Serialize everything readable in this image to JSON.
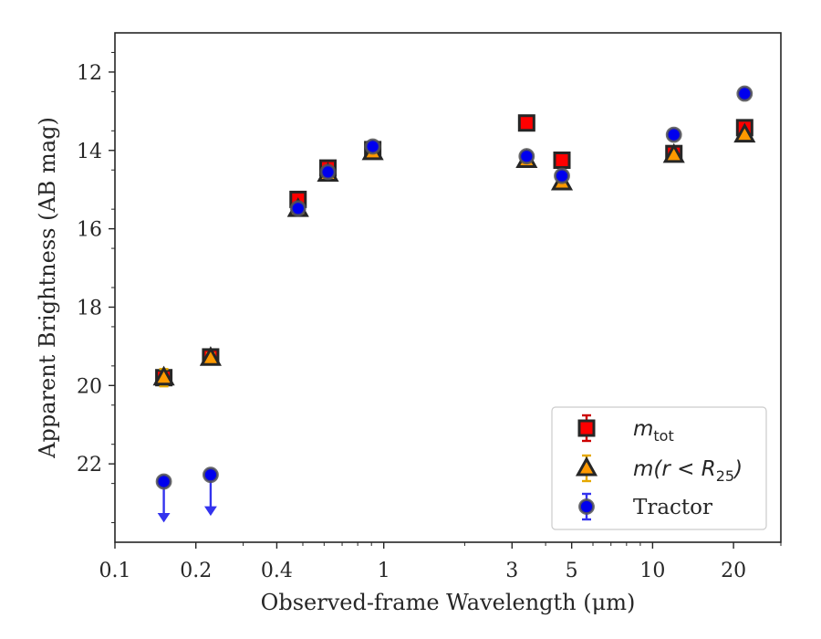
{
  "chart_data": {
    "type": "scatter",
    "title": "",
    "xlabel": "Observed-frame Wavelength (μm)",
    "ylabel": "Apparent Brightness (AB mag)",
    "xscale": "log",
    "xlim": [
      0.1,
      30
    ],
    "ylim": [
      24,
      11
    ],
    "y_inverted": true,
    "x_ticks": [
      0.1,
      0.2,
      0.4,
      1,
      3,
      5,
      10,
      20
    ],
    "x_tick_labels": [
      "0.1",
      "0.2",
      "0.4",
      "1",
      "3",
      "5",
      "10",
      "20"
    ],
    "y_ticks": [
      12,
      14,
      16,
      18,
      20,
      22
    ],
    "y_tick_labels": [
      "12",
      "14",
      "16",
      "18",
      "20",
      "22"
    ],
    "grid": false,
    "legend_position": "bottom-right",
    "series": [
      {
        "name": "m_tot",
        "legend_main": "m",
        "legend_sub": "tot",
        "marker": "square",
        "color": "#ff0000",
        "edge_color": "#262626",
        "errbar_color": "#cc0000",
        "x": [
          0.152,
          0.227,
          0.48,
          0.62,
          0.91,
          3.4,
          4.6,
          12.0,
          22.0
        ],
        "y": [
          19.8,
          19.27,
          15.25,
          14.45,
          13.98,
          13.3,
          14.25,
          14.08,
          13.42
        ],
        "yerr": [
          0.08,
          0.08,
          0.04,
          0.04,
          0.04,
          0.03,
          0.03,
          0.04,
          0.05
        ]
      },
      {
        "name": "m(r < R_25)",
        "legend_main": "m(r < R",
        "legend_sub": "25",
        "legend_tail": ")",
        "marker": "triangle",
        "color": "#ff9900",
        "edge_color": "#262626",
        "errbar_color": "#e6a800",
        "x": [
          0.152,
          0.227,
          0.48,
          0.62,
          0.91,
          3.4,
          4.6,
          12.0,
          22.0
        ],
        "y": [
          19.8,
          19.3,
          15.5,
          14.6,
          14.05,
          14.25,
          14.82,
          14.12,
          13.6
        ],
        "yerr": [
          0.22,
          0.12,
          0.04,
          0.04,
          0.04,
          0.03,
          0.03,
          0.04,
          0.05
        ]
      },
      {
        "name": "Tractor",
        "legend_main": "Tractor",
        "marker": "circle",
        "color": "#0000ee",
        "edge_color": "#555555",
        "errbar_color": "#3333ee",
        "x": [
          0.152,
          0.227,
          0.48,
          0.62,
          0.91,
          3.4,
          4.6,
          12.0,
          22.0
        ],
        "y": [
          22.45,
          22.28,
          15.48,
          14.55,
          13.9,
          14.15,
          14.65,
          13.6,
          12.55
        ],
        "yerr": [
          0,
          0,
          0.03,
          0.03,
          0.03,
          0.03,
          0.03,
          0.04,
          0.04
        ],
        "upper_limits": [
          true,
          true,
          false,
          false,
          false,
          false,
          false,
          false,
          false
        ]
      }
    ]
  }
}
